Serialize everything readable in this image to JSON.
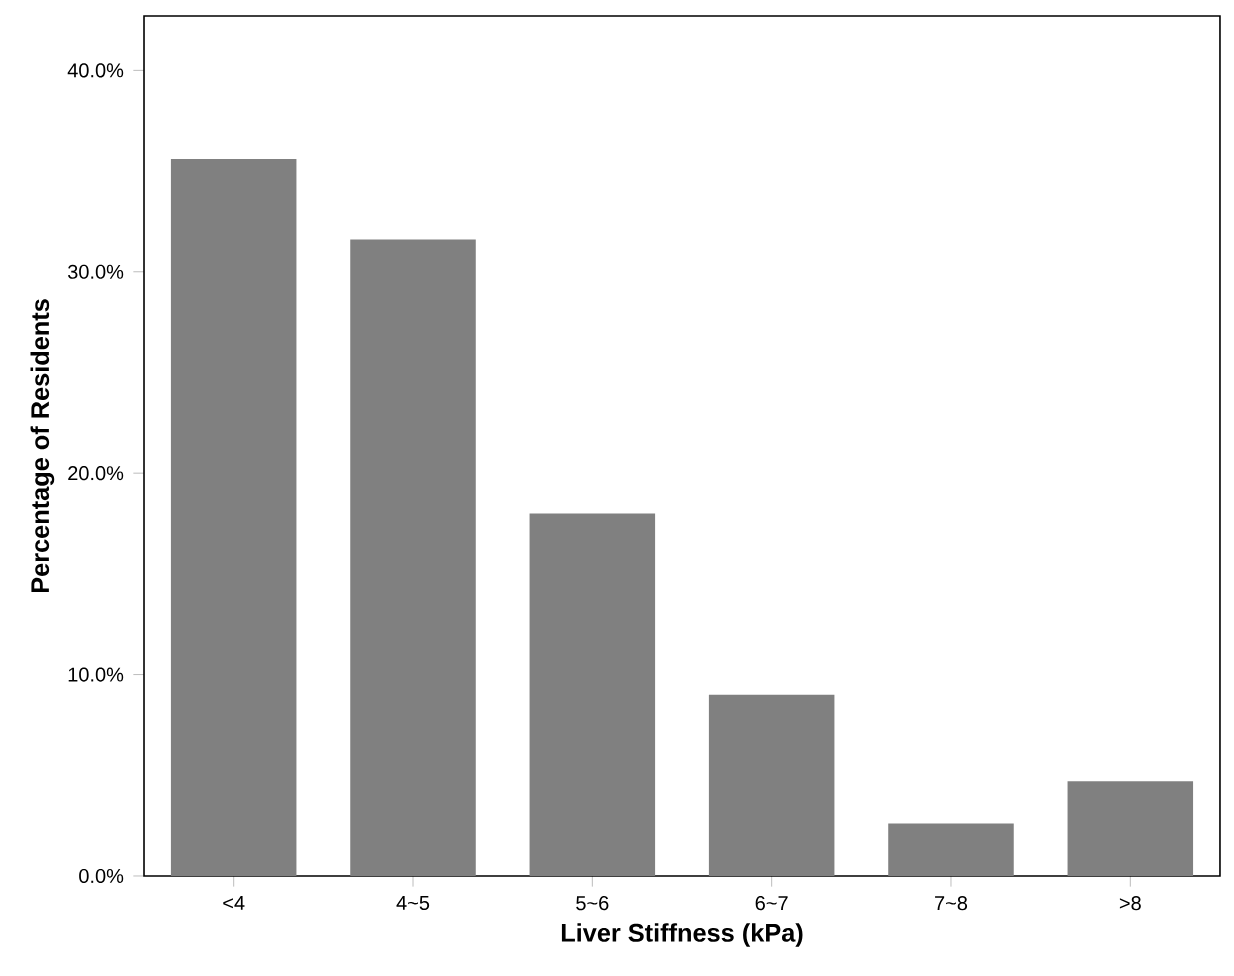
{
  "chart_data": {
    "type": "bar",
    "xlabel": "Liver Stiffness (kPa)",
    "ylabel": "Percentage of Residents",
    "categories": [
      "<4",
      "4~5",
      "5~6",
      "6~7",
      "7~8",
      ">8"
    ],
    "values": [
      35.6,
      31.6,
      18.0,
      9.0,
      2.6,
      4.7
    ],
    "color": "#808080",
    "ylim": [
      0,
      42.7
    ],
    "yticks": [
      {
        "value": 0,
        "label": "0.0%"
      },
      {
        "value": 10,
        "label": "10.0%"
      },
      {
        "value": 20,
        "label": "20.0%"
      },
      {
        "value": 30,
        "label": "30.0%"
      },
      {
        "value": 40,
        "label": "40.0%"
      }
    ]
  }
}
